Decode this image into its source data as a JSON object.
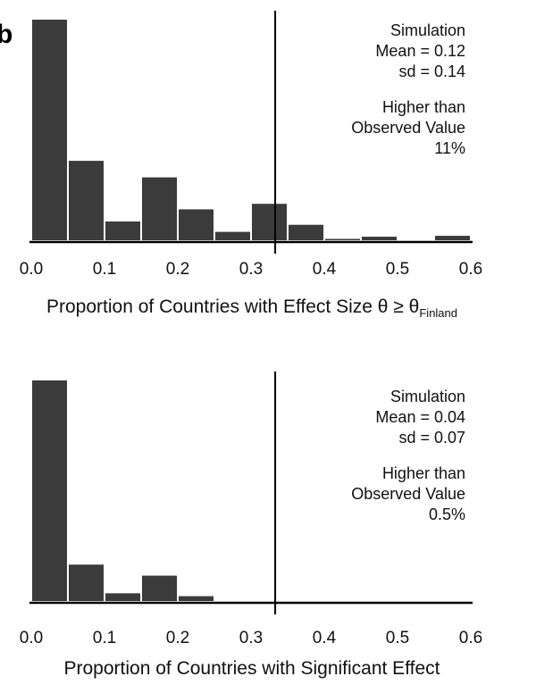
{
  "panel_label": "b",
  "chart_data": [
    {
      "type": "bar",
      "xlabel": "Proportion of Countries with Effect Size θ ≥ θ",
      "xlabel_subscript": "Finland",
      "xticks": [
        "0.0",
        "0.1",
        "0.2",
        "0.3",
        "0.4",
        "0.5",
        "0.6"
      ],
      "xlim": [
        0,
        0.6
      ],
      "bin_width": 0.05,
      "bins": [
        0.0,
        0.05,
        0.1,
        0.15,
        0.2,
        0.25,
        0.3,
        0.35,
        0.4,
        0.45,
        0.55
      ],
      "values": [
        1.0,
        0.36,
        0.085,
        0.285,
        0.14,
        0.038,
        0.165,
        0.07,
        0.006,
        0.016,
        0.02
      ],
      "observed_value": 0.333,
      "annotation_top": [
        "Simulation",
        "Mean = 0.12",
        "sd = 0.14"
      ],
      "annotation_bottom": [
        "Higher than",
        "Observed Value",
        "11%"
      ],
      "bar_color": "#3b3b3b",
      "grid": false
    },
    {
      "type": "bar",
      "xlabel": "Proportion of Countries with Significant Effect",
      "xlabel_subscript": "",
      "xticks": [
        "0.0",
        "0.1",
        "0.2",
        "0.3",
        "0.4",
        "0.5",
        "0.6"
      ],
      "xlim": [
        0,
        0.6
      ],
      "bin_width": 0.05,
      "bins": [
        0.0,
        0.05,
        0.1,
        0.15,
        0.2
      ],
      "values": [
        1.0,
        0.165,
        0.035,
        0.115,
        0.022
      ],
      "observed_value": 0.333,
      "annotation_top": [
        "Simulation",
        "Mean = 0.04",
        "sd = 0.07"
      ],
      "annotation_bottom": [
        "Higher than",
        "Observed Value",
        "0.5%"
      ],
      "bar_color": "#3b3b3b",
      "grid": false
    }
  ]
}
